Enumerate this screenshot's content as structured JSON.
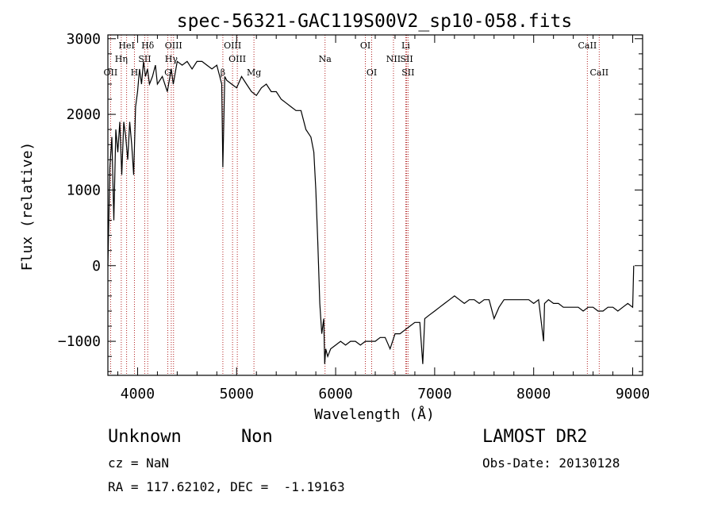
{
  "chart_data": {
    "type": "line",
    "title": "spec-56321-GAC119S00V2_sp10-058.fits",
    "xlabel": "Wavelength (Å)",
    "ylabel": "Flux (relative)",
    "xlim": [
      3700,
      9100
    ],
    "ylim": [
      -1450,
      3050
    ],
    "x_ticks": [
      4000,
      5000,
      6000,
      7000,
      8000,
      9000
    ],
    "y_ticks": [
      -1000,
      0,
      1000,
      2000,
      3000
    ],
    "grid": false,
    "line_color": "#000000",
    "marker_color": "#b22222",
    "spectrum": {
      "x": [
        3700,
        3720,
        3740,
        3760,
        3780,
        3800,
        3820,
        3840,
        3860,
        3880,
        3900,
        3920,
        3940,
        3960,
        3980,
        4000,
        4020,
        4040,
        4060,
        4080,
        4100,
        4120,
        4150,
        4180,
        4200,
        4250,
        4300,
        4340,
        4360,
        4400,
        4450,
        4500,
        4550,
        4600,
        4650,
        4700,
        4750,
        4800,
        4850,
        4861,
        4880,
        4900,
        4950,
        5000,
        5050,
        5100,
        5150,
        5200,
        5250,
        5300,
        5350,
        5400,
        5450,
        5500,
        5550,
        5600,
        5650,
        5700,
        5750,
        5780,
        5800,
        5820,
        5840,
        5860,
        5880,
        5890,
        5900,
        5920,
        5950,
        6000,
        6050,
        6100,
        6150,
        6200,
        6250,
        6300,
        6350,
        6400,
        6450,
        6500,
        6550,
        6600,
        6650,
        6700,
        6750,
        6800,
        6850,
        6880,
        6900,
        6950,
        7000,
        7050,
        7100,
        7150,
        7200,
        7250,
        7300,
        7350,
        7400,
        7450,
        7500,
        7550,
        7600,
        7650,
        7700,
        7750,
        7800,
        7850,
        7900,
        7950,
        8000,
        8050,
        8100,
        8110,
        8150,
        8200,
        8250,
        8300,
        8350,
        8400,
        8450,
        8500,
        8550,
        8600,
        8650,
        8700,
        8750,
        8800,
        8850,
        8900,
        8950,
        9000,
        9010
      ],
      "y": [
        0,
        1300,
        1700,
        600,
        1800,
        1500,
        1900,
        1200,
        1900,
        1700,
        1400,
        1900,
        1600,
        1200,
        2100,
        2300,
        2600,
        2400,
        2700,
        2500,
        2600,
        2400,
        2500,
        2650,
        2400,
        2500,
        2300,
        2600,
        2400,
        2700,
        2650,
        2700,
        2600,
        2700,
        2700,
        2650,
        2600,
        2650,
        2400,
        1300,
        2500,
        2450,
        2400,
        2350,
        2500,
        2400,
        2300,
        2250,
        2350,
        2400,
        2300,
        2300,
        2200,
        2150,
        2100,
        2050,
        2050,
        1800,
        1700,
        1500,
        1000,
        300,
        -500,
        -900,
        -700,
        -1300,
        -1100,
        -1200,
        -1100,
        -1050,
        -1000,
        -1050,
        -1000,
        -1000,
        -1050,
        -1000,
        -1000,
        -1000,
        -950,
        -950,
        -1100,
        -900,
        -900,
        -850,
        -800,
        -750,
        -750,
        -1300,
        -700,
        -650,
        -600,
        -550,
        -500,
        -450,
        -400,
        -450,
        -500,
        -450,
        -450,
        -500,
        -450,
        -450,
        -700,
        -550,
        -450,
        -450,
        -450,
        -450,
        -450,
        -450,
        -500,
        -450,
        -1000,
        -500,
        -450,
        -500,
        -500,
        -550,
        -550,
        -550,
        -550,
        -600,
        -550,
        -550,
        -600,
        -600,
        -550,
        -550,
        -600,
        -550,
        -500,
        -550,
        0
      ]
    },
    "lines": [
      {
        "label": "OII",
        "x": 3727,
        "row": 3
      },
      {
        "label": "Hη",
        "x": 3835,
        "row": 2
      },
      {
        "label": "HeI",
        "x": 3889,
        "row": 1
      },
      {
        "label": "H",
        "x": 3968,
        "row": 3
      },
      {
        "label": "Hδ",
        "x": 4102,
        "row": 1
      },
      {
        "label": "SII",
        "x": 4072,
        "row": 2
      },
      {
        "label": "OIII",
        "x": 4363,
        "row": 1
      },
      {
        "label": "Hγ",
        "x": 4340,
        "row": 2
      },
      {
        "label": "G",
        "x": 4305,
        "row": 3
      },
      {
        "label": "OIII",
        "x": 4959,
        "row": 1
      },
      {
        "label": "OIII",
        "x": 5007,
        "row": 2
      },
      {
        "label": "β",
        "x": 4861,
        "row": 3
      },
      {
        "label": "Mg",
        "x": 5175,
        "row": 3
      },
      {
        "label": "Na",
        "x": 5893,
        "row": 2
      },
      {
        "label": "OI",
        "x": 6300,
        "row": 1
      },
      {
        "label": "OI",
        "x": 6364,
        "row": 3
      },
      {
        "label": "NII",
        "x": 6584,
        "row": 2
      },
      {
        "label": "Li",
        "x": 6708,
        "row": 1
      },
      {
        "label": "SII",
        "x": 6717,
        "row": 2
      },
      {
        "label": "SII",
        "x": 6731,
        "row": 3
      },
      {
        "label": "CaII",
        "x": 8542,
        "row": 1
      },
      {
        "label": "CaII",
        "x": 8662,
        "row": 3
      }
    ]
  },
  "footer": {
    "object_class": "Unknown",
    "subclass": "Non",
    "survey": "LAMOST DR2",
    "cz": "cz = NaN",
    "obs_date": "Obs-Date: 20130128",
    "coords": "RA = 117.62102, DEC =  -1.19163"
  }
}
